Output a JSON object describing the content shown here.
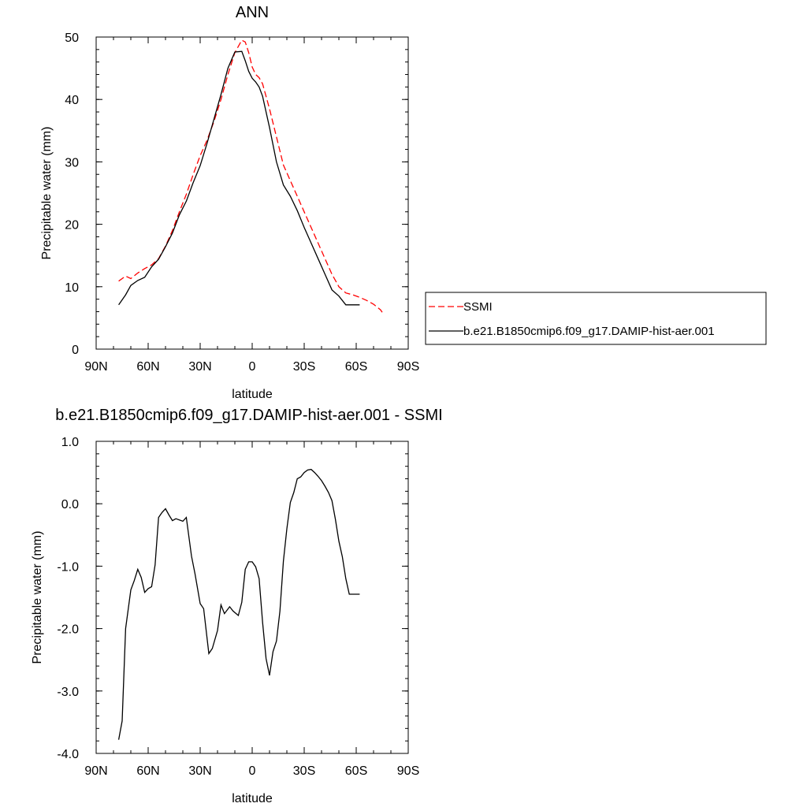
{
  "chart_data": [
    {
      "type": "line",
      "title": "ANN",
      "xlabel": "latitude",
      "ylabel": "Precipitable water (mm)",
      "xlim": [
        90,
        -90
      ],
      "ylim": [
        0,
        50
      ],
      "xticks": [
        90,
        60,
        30,
        0,
        -30,
        -60,
        -90
      ],
      "xtick_labels": [
        "90N",
        "60N",
        "30N",
        "0",
        "30S",
        "60S",
        "90S"
      ],
      "yticks": [
        0,
        10,
        20,
        30,
        40,
        50
      ],
      "ytick_labels": [
        "0",
        "10",
        "20",
        "30",
        "40",
        "50"
      ],
      "grid": false,
      "legend": "right",
      "series": [
        {
          "name": "SSMI",
          "color": "#ff0000",
          "dash": "dashed",
          "x": [
            77,
            73,
            70,
            66,
            62,
            58,
            54,
            50,
            46,
            42,
            38,
            34,
            30,
            26,
            22,
            18,
            14,
            10,
            6,
            4,
            2,
            0,
            -2,
            -4,
            -6,
            -10,
            -14,
            -18,
            -22,
            -26,
            -30,
            -34,
            -38,
            -42,
            -46,
            -50,
            -54,
            -58,
            -62,
            -66,
            -70,
            -74,
            -75
          ],
          "values": [
            10.9,
            11.7,
            11.3,
            12.2,
            12.9,
            13.5,
            14.5,
            16.5,
            19.0,
            22.0,
            24.8,
            28.0,
            31.0,
            33.5,
            36.5,
            40.0,
            44.0,
            47.5,
            49.5,
            49.2,
            47.5,
            45.2,
            44.0,
            43.5,
            42.5,
            38.5,
            34.0,
            29.5,
            27.0,
            24.5,
            22.0,
            19.5,
            17.0,
            14.5,
            12.0,
            10.0,
            9.0,
            8.7,
            8.3,
            7.8,
            7.2,
            6.3,
            5.9
          ]
        },
        {
          "name": "b.e21.B1850cmip6.f09_g17.DAMIP-hist-aer.001",
          "color": "#000000",
          "dash": "solid",
          "x": [
            77,
            73,
            70,
            66,
            62,
            58,
            54,
            50,
            46,
            42,
            38,
            34,
            30,
            26,
            22,
            18,
            14,
            10,
            6,
            4,
            2,
            0,
            -2,
            -4,
            -6,
            -10,
            -14,
            -18,
            -22,
            -26,
            -30,
            -34,
            -38,
            -42,
            -46,
            -50,
            -54,
            -58,
            -62
          ],
          "values": [
            7.1,
            8.7,
            10.2,
            11.0,
            11.5,
            13.2,
            14.4,
            16.4,
            18.6,
            21.5,
            23.7,
            26.7,
            29.4,
            33.0,
            36.9,
            40.8,
            45.0,
            47.6,
            47.7,
            46.2,
            44.5,
            43.4,
            42.8,
            42.0,
            40.5,
            35.5,
            30.0,
            26.3,
            24.5,
            22.2,
            19.5,
            17.0,
            14.5,
            12.0,
            9.5,
            8.5,
            7.1,
            7.1,
            7.1
          ]
        }
      ]
    },
    {
      "type": "line",
      "title": "b.e21.B1850cmip6.f09_g17.DAMIP-hist-aer.001 - SSMI",
      "xlabel": "latitude",
      "ylabel": "Precipitable water (mm)",
      "xlim": [
        90,
        -90
      ],
      "ylim": [
        -4,
        1
      ],
      "xticks": [
        90,
        60,
        30,
        0,
        -30,
        -60,
        -90
      ],
      "xtick_labels": [
        "90N",
        "60N",
        "30N",
        "0",
        "30S",
        "60S",
        "90S"
      ],
      "yticks": [
        1,
        0,
        -1,
        -2,
        -3,
        -4
      ],
      "ytick_labels": [
        "1.0",
        "0.0",
        "-1.0",
        "-2.0",
        "-3.0",
        "-4.0"
      ],
      "grid": false,
      "series": [
        {
          "color": "#000000",
          "dash": "solid",
          "x": [
            77,
            75,
            73,
            70,
            68,
            66,
            64,
            62,
            60,
            58,
            56,
            54,
            52,
            50,
            48,
            46,
            44,
            40,
            38,
            35,
            33,
            30,
            28,
            25,
            23,
            20,
            18,
            16,
            13,
            11,
            8,
            6,
            4,
            2,
            0,
            -2,
            -4,
            -6,
            -8,
            -10,
            -12,
            -14,
            -16,
            -18,
            -20,
            -22,
            -24,
            -26,
            -28,
            -30,
            -32,
            -34,
            -36,
            -38,
            -40,
            -42,
            -44,
            -46,
            -48,
            -50,
            -52,
            -54,
            -56,
            -58,
            -60,
            -62
          ],
          "values": [
            -3.78,
            -3.48,
            -2.0,
            -1.38,
            -1.23,
            -1.05,
            -1.18,
            -1.42,
            -1.36,
            -1.33,
            -0.98,
            -0.22,
            -0.14,
            -0.08,
            -0.18,
            -0.27,
            -0.24,
            -0.28,
            -0.22,
            -0.84,
            -1.12,
            -1.6,
            -1.68,
            -2.4,
            -2.32,
            -2.03,
            -1.62,
            -1.76,
            -1.65,
            -1.72,
            -1.79,
            -1.58,
            -1.05,
            -0.93,
            -0.93,
            -1.01,
            -1.2,
            -1.9,
            -2.48,
            -2.75,
            -2.37,
            -2.2,
            -1.72,
            -0.92,
            -0.4,
            0.02,
            0.18,
            0.4,
            0.43,
            0.5,
            0.54,
            0.55,
            0.5,
            0.44,
            0.37,
            0.28,
            0.18,
            0.05,
            -0.25,
            -0.6,
            -0.85,
            -1.2,
            -1.45,
            -1.45,
            -1.45,
            -1.45
          ]
        }
      ]
    }
  ]
}
